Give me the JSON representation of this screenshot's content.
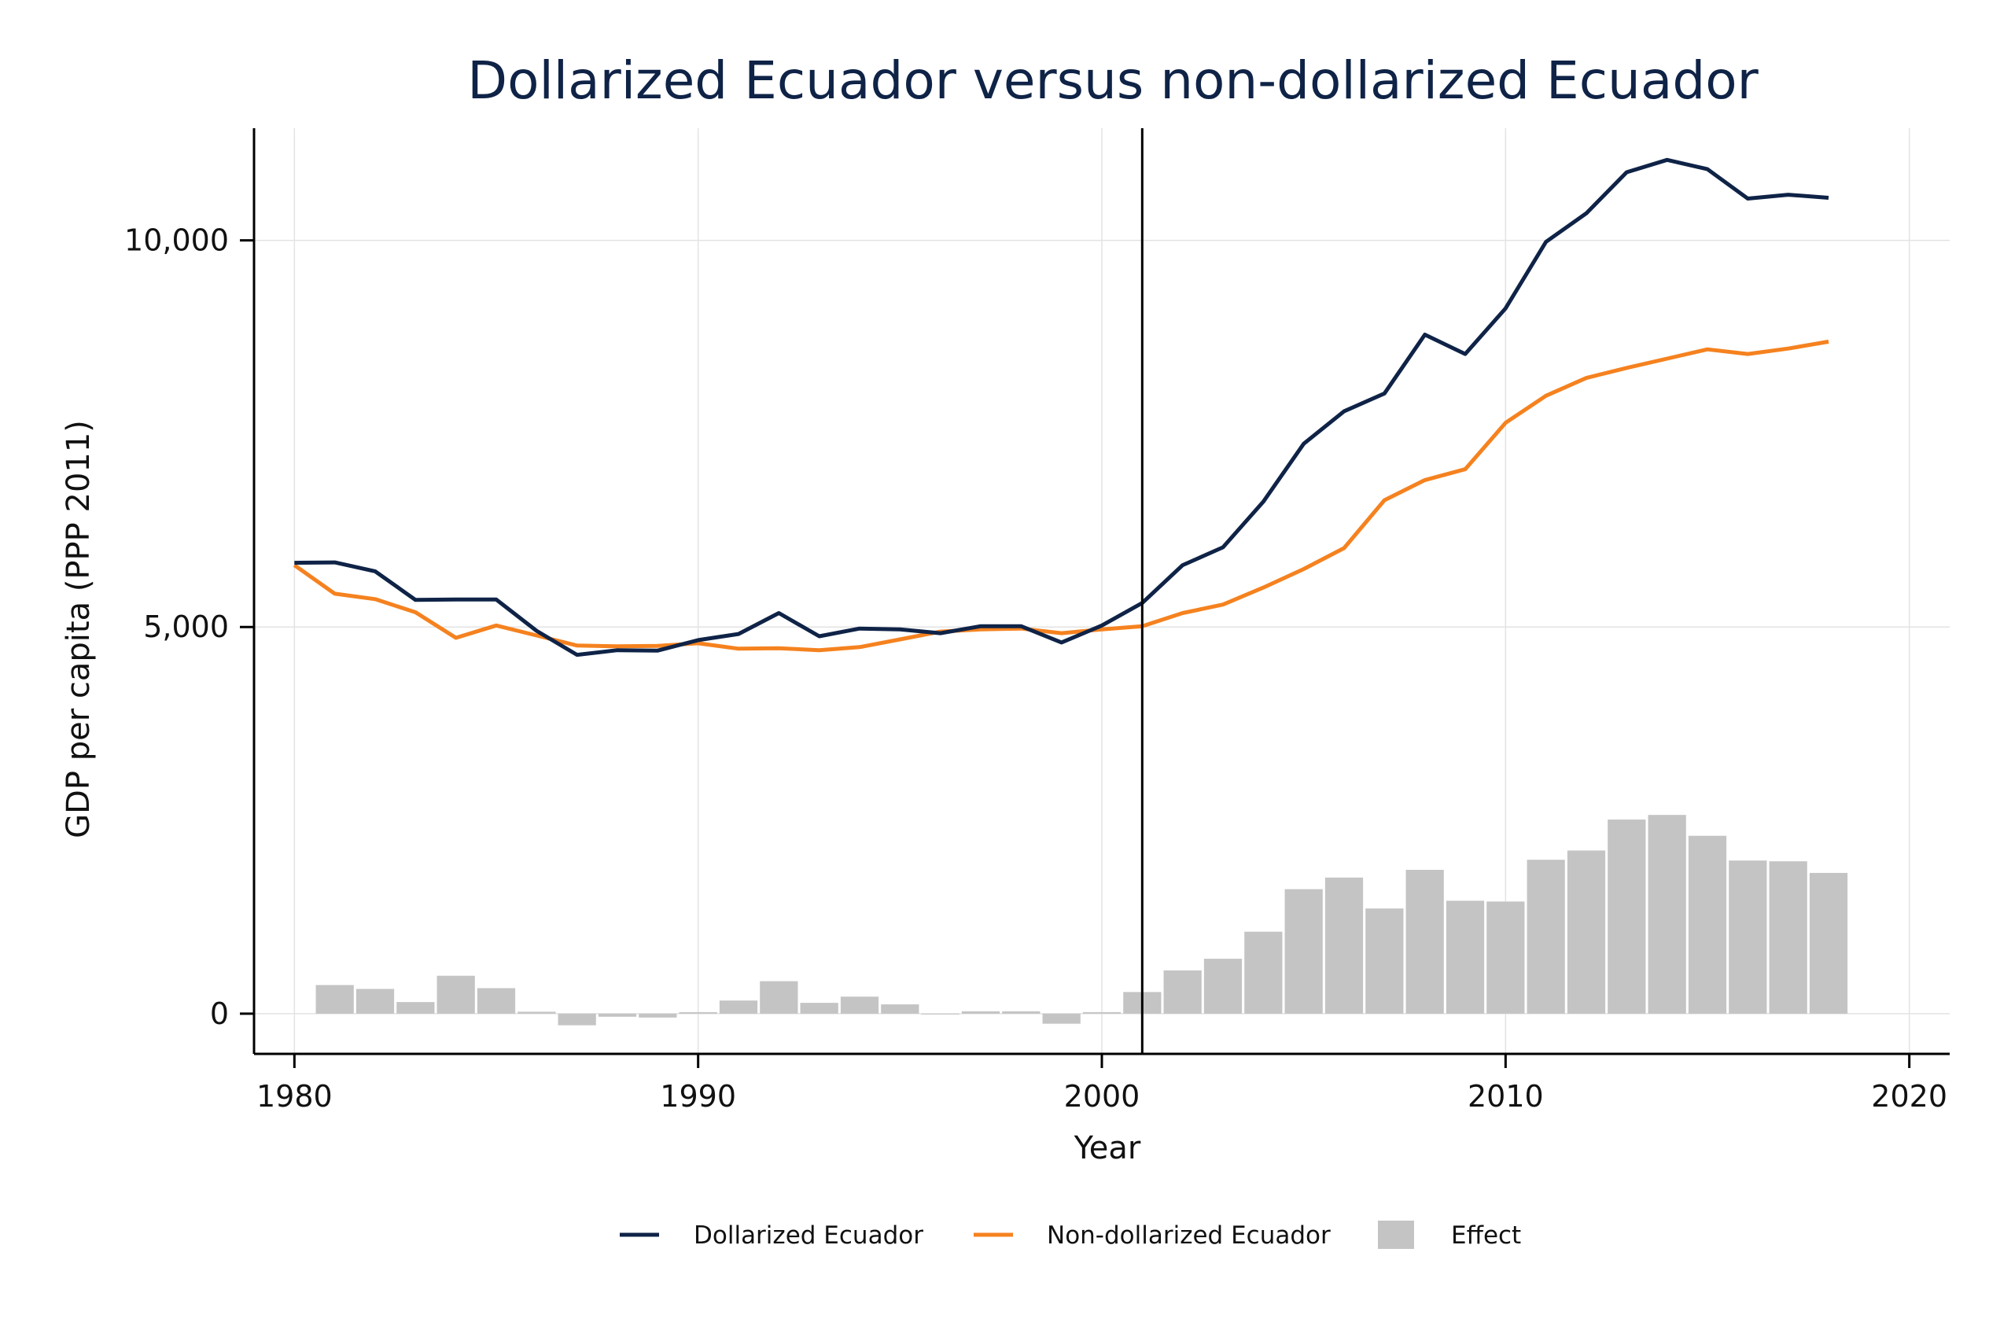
{
  "colors": {
    "dollarized": "#0f2347",
    "non_dollarized": "#f5821f",
    "effect": "#c4c4c4",
    "grid": "#e3e3e3",
    "axis": "#000000",
    "title": "#0f2347"
  },
  "chart_data": {
    "type": "line",
    "title": "Dollarized Ecuador versus non-dollarized Ecuador",
    "xlabel": "Year",
    "ylabel": "GDP per capita (PPP 2011)",
    "xlim": [
      1979,
      2021
    ],
    "ylim": [
      -520,
      11450
    ],
    "x_ticks": [
      1980,
      1990,
      2000,
      2010,
      2020
    ],
    "x_tick_labels": [
      "1980",
      "1990",
      "2000",
      "2010",
      "2020"
    ],
    "y_ticks": [
      0,
      5000,
      10000
    ],
    "y_tick_labels": [
      "0",
      "5,000",
      "10,000"
    ],
    "grid": true,
    "treatment_year": 2001,
    "legend_position": "bottom",
    "x": [
      1980,
      1981,
      1982,
      1983,
      1984,
      1985,
      1986,
      1987,
      1988,
      1989,
      1990,
      1991,
      1992,
      1993,
      1994,
      1995,
      1996,
      1997,
      1998,
      1999,
      2000,
      2001,
      2002,
      2003,
      2004,
      2005,
      2006,
      2007,
      2008,
      2009,
      2010,
      2011,
      2012,
      2013,
      2014,
      2015,
      2016,
      2017,
      2018
    ],
    "series": [
      {
        "name": "Dollarized Ecuador",
        "type": "line",
        "values": [
          5830,
          5835,
          5720,
          5350,
          5355,
          5355,
          4950,
          4640,
          4700,
          4695,
          4830,
          4910,
          5180,
          4880,
          4980,
          4970,
          4920,
          5010,
          5010,
          4800,
          5020,
          5310,
          5800,
          6030,
          6620,
          7370,
          7790,
          8020,
          8780,
          8530,
          9120,
          9980,
          10350,
          10880,
          11040,
          10920,
          10540,
          10590,
          10550
        ]
      },
      {
        "name": "Non-dollarized Ecuador",
        "type": "line",
        "values": [
          5800,
          5430,
          5360,
          5190,
          4860,
          5020,
          4890,
          4760,
          4750,
          4755,
          4790,
          4720,
          4725,
          4700,
          4740,
          4840,
          4940,
          4970,
          4980,
          4920,
          4970,
          5010,
          5180,
          5290,
          5510,
          5750,
          6020,
          6640,
          6900,
          7040,
          7640,
          7990,
          8220,
          8350,
          8470,
          8590,
          8530,
          8600,
          8690
        ]
      },
      {
        "name": "Effect",
        "type": "bar",
        "values": [
          0,
          370,
          320,
          150,
          490,
          330,
          25,
          -150,
          -40,
          -50,
          20,
          170,
          420,
          140,
          220,
          120,
          -10,
          30,
          30,
          -130,
          20,
          280,
          560,
          710,
          1060,
          1610,
          1760,
          1360,
          1860,
          1460,
          1450,
          1990,
          2110,
          2510,
          2570,
          2300,
          1980,
          1970,
          1820
        ]
      }
    ]
  }
}
